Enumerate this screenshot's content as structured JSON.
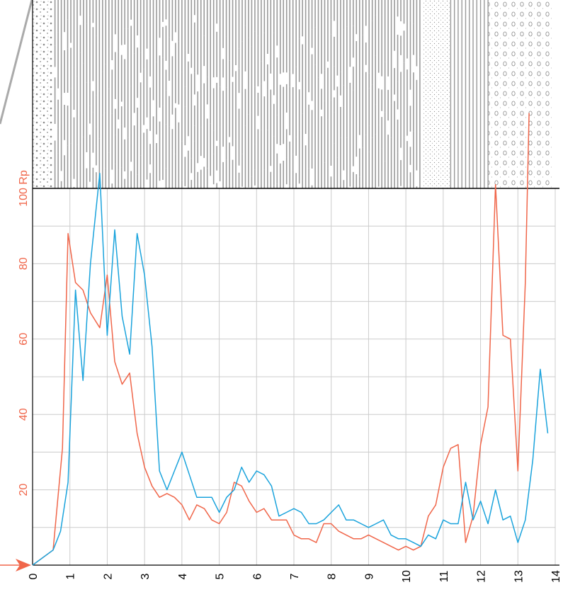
{
  "chart_data": {
    "type": "line",
    "title": "",
    "xlabel": "",
    "ylabel": "Rp",
    "xlim": [
      0,
      14
    ],
    "ylim": [
      0,
      100
    ],
    "x_ticks": [
      "0",
      "1",
      "2",
      "3",
      "4",
      "5",
      "6",
      "7",
      "8",
      "9",
      "10",
      "11",
      "12",
      "13",
      "14"
    ],
    "y_ticks": [
      "20",
      "40",
      "60",
      "80",
      "100 Rp"
    ],
    "grid": true,
    "colors": {
      "red": "#f0664a",
      "blue": "#1aa3dc",
      "grid": "#cccccc",
      "axis": "#000000",
      "column_pattern": "#9a9a9a"
    },
    "series": [
      {
        "color": "#f0664a",
        "x": [
          0,
          0.55,
          0.8,
          0.95,
          1.15,
          1.35,
          1.55,
          1.8,
          2.0,
          2.2,
          2.4,
          2.6,
          2.8,
          3.0,
          3.2,
          3.4,
          3.6,
          3.8,
          4.0,
          4.2,
          4.4,
          4.6,
          4.8,
          5.0,
          5.2,
          5.4,
          5.6,
          5.8,
          6.0,
          6.2,
          6.4,
          6.6,
          6.8,
          7.0,
          7.2,
          7.4,
          7.6,
          7.8,
          8.0,
          8.2,
          8.4,
          8.6,
          8.8,
          9.0,
          9.2,
          9.4,
          9.6,
          9.8,
          10.0,
          10.2,
          10.4,
          10.6,
          10.8,
          11.0,
          11.2,
          11.4,
          11.6,
          11.8,
          12.0,
          12.2,
          12.4,
          12.6,
          12.8,
          13.0,
          13.2,
          13.3
        ],
        "values": [
          0,
          4,
          31,
          88,
          75,
          73,
          67,
          63,
          77,
          54,
          48,
          51,
          35,
          26,
          21,
          18,
          19,
          18,
          16,
          12,
          16,
          15,
          12,
          11,
          14,
          22,
          21,
          17,
          14,
          15,
          12,
          12,
          12,
          8,
          7,
          7,
          6,
          11,
          11,
          9,
          8,
          7,
          7,
          8,
          7,
          6,
          5,
          4,
          5,
          4,
          5,
          13,
          16,
          26,
          31,
          32,
          6,
          13,
          32,
          42,
          101,
          61,
          60,
          25,
          75,
          120
        ]
      },
      {
        "color": "#1aa3dc",
        "x": [
          0,
          0.55,
          0.75,
          0.95,
          1.15,
          1.35,
          1.55,
          1.8,
          2.0,
          2.2,
          2.4,
          2.6,
          2.8,
          3.0,
          3.2,
          3.4,
          3.6,
          3.8,
          4.0,
          4.2,
          4.4,
          4.6,
          4.8,
          5.0,
          5.2,
          5.4,
          5.6,
          5.8,
          6.0,
          6.2,
          6.4,
          6.6,
          6.8,
          7.0,
          7.2,
          7.4,
          7.6,
          7.8,
          8.0,
          8.2,
          8.4,
          8.6,
          8.8,
          9.0,
          9.2,
          9.4,
          9.6,
          9.8,
          10.0,
          10.2,
          10.4,
          10.6,
          10.8,
          11.0,
          11.2,
          11.4,
          11.6,
          11.8,
          12.0,
          12.2,
          12.4,
          12.6,
          12.8,
          13.0,
          13.2,
          13.4,
          13.6,
          13.8
        ],
        "values": [
          0,
          4,
          9,
          22,
          73,
          49,
          80,
          104,
          61,
          89,
          66,
          56,
          88,
          77,
          58,
          25,
          20,
          25,
          30,
          24,
          18,
          18,
          18,
          14,
          18,
          20,
          26,
          22,
          25,
          24,
          21,
          13,
          14,
          15,
          14,
          11,
          11,
          12,
          14,
          16,
          12,
          12,
          11,
          10,
          11,
          12,
          8,
          7,
          7,
          6,
          5,
          8,
          7,
          12,
          11,
          11,
          22,
          12,
          17,
          11,
          20,
          12,
          13,
          6,
          12,
          28,
          52,
          35
        ]
      }
    ]
  }
}
